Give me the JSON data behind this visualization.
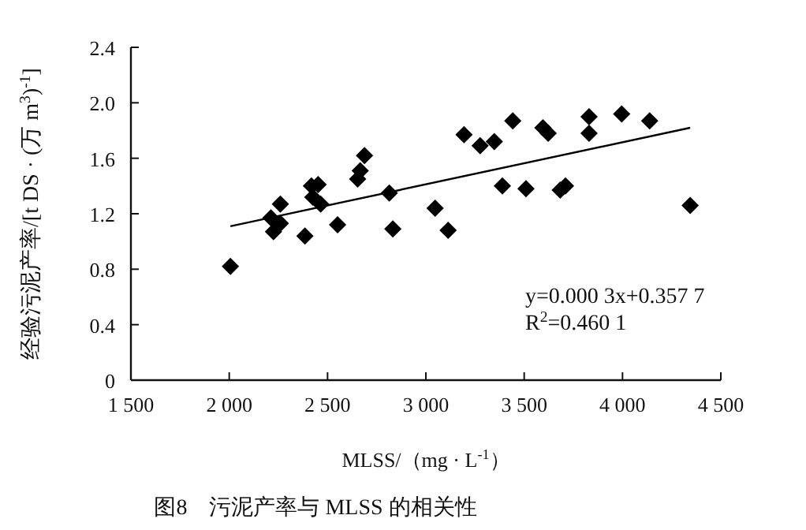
{
  "chart_data": {
    "type": "scatter",
    "title": "图8　污泥产率与 MLSS 的相关性",
    "xlabel": "MLSS/（mg · L$^{-1}$）",
    "ylabel": "经验污泥产率/[t DS · (万 m$^{3}$)$^{-1}$]",
    "annotations": [
      "y=0.000 3x+0.357 7",
      "R$^{2}$=0.460 1"
    ],
    "series": [
      {
        "color": "#000000",
        "marker": "diamond",
        "x": [
          2006,
          2212,
          2225,
          2260,
          2260,
          2385,
          2418,
          2452,
          2425,
          2465,
          2551,
          2653,
          2666,
          2688,
          2814,
          2832,
          3047,
          3113,
          3194,
          3276,
          3348,
          3442,
          3389,
          3509,
          3595,
          3622,
          3683,
          3710,
          3830,
          3830,
          3996,
          4138,
          4344
        ],
        "values": [
          0.82,
          1.17,
          1.07,
          1.13,
          1.27,
          1.04,
          1.4,
          1.41,
          1.32,
          1.27,
          1.12,
          1.45,
          1.51,
          1.62,
          1.35,
          1.09,
          1.24,
          1.08,
          1.77,
          1.69,
          1.72,
          1.87,
          1.4,
          1.38,
          1.82,
          1.78,
          1.37,
          1.4,
          1.9,
          1.78,
          1.92,
          1.87,
          1.26
        ]
      },
      {
        "type": "line",
        "color": "#000000",
        "marker": "none",
        "x": [
          2006,
          4344
        ],
        "values": [
          1.11,
          1.82
        ]
      }
    ],
    "xlim": [
      1500,
      4500
    ],
    "ylim": [
      0,
      2.4
    ],
    "xticks": [
      {
        "value": 1500,
        "label": "1 500"
      },
      {
        "value": 2000,
        "label": "2 000"
      },
      {
        "value": 2500,
        "label": "2 500"
      },
      {
        "value": 3000,
        "label": "3 000"
      },
      {
        "value": 3500,
        "label": "3 500"
      },
      {
        "value": 4000,
        "label": "4 000"
      },
      {
        "value": 4500,
        "label": "4 500"
      }
    ],
    "yticks": [
      0,
      0.4,
      0.8,
      1.2,
      1.6,
      {
        "value": 2.0,
        "label": "2.0"
      },
      2.4
    ],
    "grid": false
  }
}
